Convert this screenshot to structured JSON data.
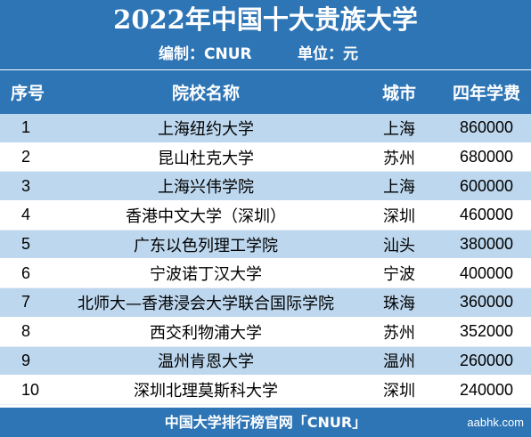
{
  "title": "2022年中国十大贵族大学",
  "subtitle": {
    "editor": "编制：CNUR",
    "unit": "单位：元"
  },
  "columns": {
    "rank": "序号",
    "name": "院校名称",
    "city": "城市",
    "fee": "四年学费"
  },
  "rows": [
    {
      "rank": "1",
      "name": "上海纽约大学",
      "city": "上海",
      "fee": "860000"
    },
    {
      "rank": "2",
      "name": "昆山杜克大学",
      "city": "苏州",
      "fee": "680000"
    },
    {
      "rank": "3",
      "name": "上海兴伟学院",
      "city": "上海",
      "fee": "600000"
    },
    {
      "rank": "4",
      "name": "香港中文大学（深圳）",
      "city": "深圳",
      "fee": "460000"
    },
    {
      "rank": "5",
      "name": "广东以色列理工学院",
      "city": "汕头",
      "fee": "380000"
    },
    {
      "rank": "6",
      "name": "宁波诺丁汉大学",
      "city": "宁波",
      "fee": "400000"
    },
    {
      "rank": "7",
      "name": "北师大—香港浸会大学联合国际学院",
      "city": "珠海",
      "fee": "360000"
    },
    {
      "rank": "8",
      "name": "西交利物浦大学",
      "city": "苏州",
      "fee": "352000"
    },
    {
      "rank": "9",
      "name": "温州肯恩大学",
      "city": "温州",
      "fee": "260000"
    },
    {
      "rank": "10",
      "name": "深圳北理莫斯科大学",
      "city": "深圳",
      "fee": "240000"
    }
  ],
  "footer": {
    "text": "中国大学排行榜官网「CNUR」",
    "watermark": "aabhk.com"
  },
  "colors": {
    "header_blue": "#2e75b6",
    "stripe_light_blue": "#bdd7ee",
    "white": "#ffffff"
  }
}
